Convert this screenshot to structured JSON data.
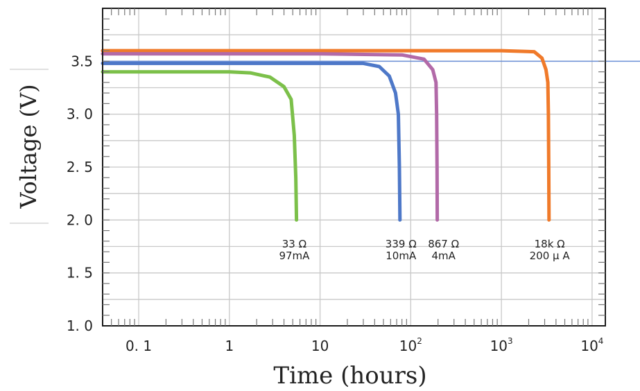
{
  "chart_data": {
    "type": "line",
    "title": "",
    "xlabel": "Time (hours)",
    "ylabel": "Voltage (V)",
    "x_scale": "log",
    "xlim": [
      0.04,
      14000
    ],
    "ylim": [
      1.0,
      4.0
    ],
    "grid": true,
    "x_ticks": [
      {
        "value": 0.1,
        "label": "0. 1"
      },
      {
        "value": 1,
        "label": "1"
      },
      {
        "value": 10,
        "label": "10"
      },
      {
        "value": 100,
        "label": "10",
        "sup": "2"
      },
      {
        "value": 1000,
        "label": "10",
        "sup": "3"
      },
      {
        "value": 10000,
        "label": "10",
        "sup": "4"
      }
    ],
    "y_ticks": [
      {
        "value": 1.0,
        "label": "1. 0"
      },
      {
        "value": 1.5,
        "label": "1. 5"
      },
      {
        "value": 2.0,
        "label": "2. 0"
      },
      {
        "value": 2.5,
        "label": "2. 5"
      },
      {
        "value": 3.0,
        "label": "3. 0"
      },
      {
        "value": 3.5,
        "label": "3.5"
      }
    ],
    "reference_line": {
      "y": 3.5,
      "color": "#6a8fd6"
    },
    "series": [
      {
        "color": "#f07a2a",
        "label_lines": [
          "18k Ω",
          "200 μ A"
        ],
        "label_at": {
          "x": 3400,
          "y": 1.87
        },
        "points": [
          [
            0.04,
            3.6
          ],
          [
            100,
            3.6
          ],
          [
            1000,
            3.6
          ],
          [
            2300,
            3.59
          ],
          [
            2800,
            3.53
          ],
          [
            3100,
            3.42
          ],
          [
            3250,
            3.3
          ],
          [
            3300,
            3.0
          ],
          [
            3330,
            2.5
          ],
          [
            3350,
            2.0
          ]
        ]
      },
      {
        "color": "#b26aa8",
        "label_lines": [
          "867 Ω",
          "4mA"
        ],
        "label_at": {
          "x": 230,
          "y": 1.87
        },
        "points": [
          [
            0.04,
            3.57
          ],
          [
            10,
            3.57
          ],
          [
            80,
            3.56
          ],
          [
            140,
            3.52
          ],
          [
            175,
            3.42
          ],
          [
            190,
            3.3
          ],
          [
            193,
            3.0
          ],
          [
            195,
            2.5
          ],
          [
            196,
            2.0
          ]
        ]
      },
      {
        "color": "#4e78c8",
        "label_lines": [
          "339 Ω",
          "10mA"
        ],
        "label_at": {
          "x": 78,
          "y": 1.87
        },
        "points": [
          [
            0.04,
            3.48
          ],
          [
            10,
            3.48
          ],
          [
            30,
            3.48
          ],
          [
            45,
            3.45
          ],
          [
            58,
            3.36
          ],
          [
            68,
            3.2
          ],
          [
            73,
            3.0
          ],
          [
            75,
            2.5
          ],
          [
            76,
            2.0
          ]
        ]
      },
      {
        "color": "#7cc04a",
        "label_lines": [
          "33 Ω",
          "97mA"
        ],
        "label_at": {
          "x": 5.2,
          "y": 1.87
        },
        "points": [
          [
            0.04,
            3.4
          ],
          [
            1,
            3.4
          ],
          [
            1.7,
            3.39
          ],
          [
            2.8,
            3.35
          ],
          [
            4.0,
            3.26
          ],
          [
            4.8,
            3.14
          ],
          [
            5.2,
            2.8
          ],
          [
            5.4,
            2.4
          ],
          [
            5.5,
            2.0
          ]
        ]
      }
    ]
  }
}
